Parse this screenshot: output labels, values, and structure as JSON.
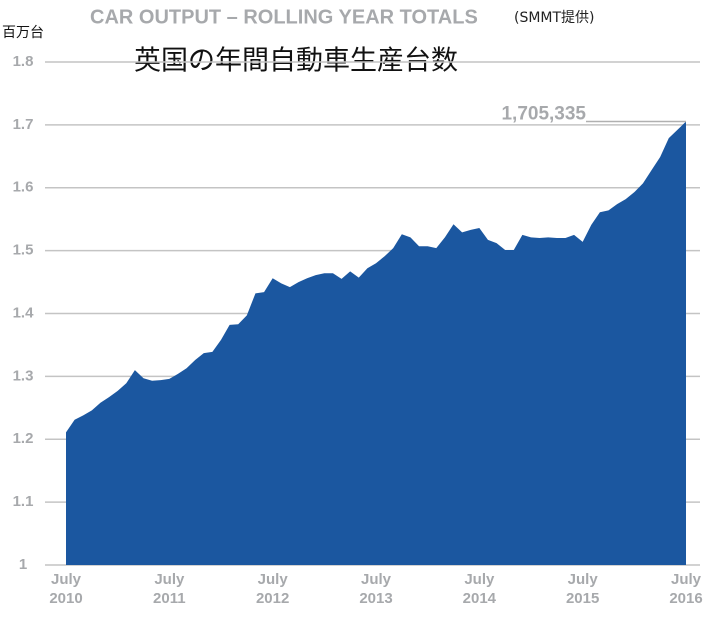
{
  "chart_data": {
    "type": "area",
    "title": "CAR OUTPUT – ROLLING YEAR TOTALS",
    "source": "(SMMT提供)",
    "subtitle": "英国の年間自動車生産台数",
    "y_label": "百万台",
    "color": "#1b57a0",
    "grid": true,
    "categories": [
      "July 2010",
      null,
      null,
      null,
      null,
      null,
      null,
      null,
      null,
      null,
      null,
      null,
      "July 2011",
      null,
      null,
      null,
      null,
      null,
      null,
      null,
      null,
      null,
      null,
      null,
      "July 2012",
      null,
      null,
      null,
      null,
      null,
      null,
      null,
      null,
      null,
      null,
      null,
      "July 2013",
      null,
      null,
      null,
      null,
      null,
      null,
      null,
      null,
      null,
      null,
      null,
      "July 2014",
      null,
      null,
      null,
      null,
      null,
      null,
      null,
      null,
      null,
      null,
      null,
      "July 2015",
      null,
      null,
      null,
      null,
      null,
      null,
      null,
      null,
      null,
      null,
      null,
      "July 2016"
    ],
    "values": [
      1.211,
      1.231,
      1.238,
      1.246,
      1.258,
      1.267,
      1.277,
      1.289,
      1.31,
      1.297,
      1.293,
      1.294,
      1.296,
      1.304,
      1.313,
      1.326,
      1.337,
      1.339,
      1.358,
      1.382,
      1.383,
      1.397,
      1.432,
      1.434,
      1.456,
      1.448,
      1.442,
      1.45,
      1.456,
      1.461,
      1.464,
      1.464,
      1.455,
      1.467,
      1.457,
      1.472,
      1.48,
      1.491,
      1.504,
      1.526,
      1.521,
      1.507,
      1.507,
      1.504,
      1.521,
      1.542,
      1.529,
      1.533,
      1.536,
      1.517,
      1.512,
      1.501,
      1.501,
      1.525,
      1.521,
      1.52,
      1.521,
      1.52,
      1.52,
      1.525,
      1.514,
      1.541,
      1.561,
      1.564,
      1.574,
      1.582,
      1.593,
      1.607,
      1.628,
      1.649,
      1.679,
      1.692,
      1.705335
    ],
    "value_labels": [
      null,
      null,
      null,
      null,
      null,
      null,
      null,
      null,
      null,
      null,
      null,
      null,
      null,
      null,
      null,
      null,
      null,
      null,
      null,
      null,
      null,
      null,
      null,
      null,
      null,
      null,
      null,
      null,
      null,
      null,
      null,
      null,
      null,
      null,
      null,
      null,
      null,
      null,
      null,
      null,
      null,
      null,
      null,
      null,
      null,
      null,
      null,
      null,
      null,
      null,
      null,
      null,
      null,
      null,
      null,
      null,
      null,
      null,
      null,
      null,
      null,
      null,
      null,
      null,
      null,
      null,
      null,
      null,
      null,
      null,
      null,
      null,
      "1,705,335"
    ],
    "ylim": [
      1,
      1.8
    ],
    "yticks": [
      1,
      1.1,
      1.2,
      1.3,
      1.4,
      1.5,
      1.6,
      1.7,
      1.8
    ]
  }
}
